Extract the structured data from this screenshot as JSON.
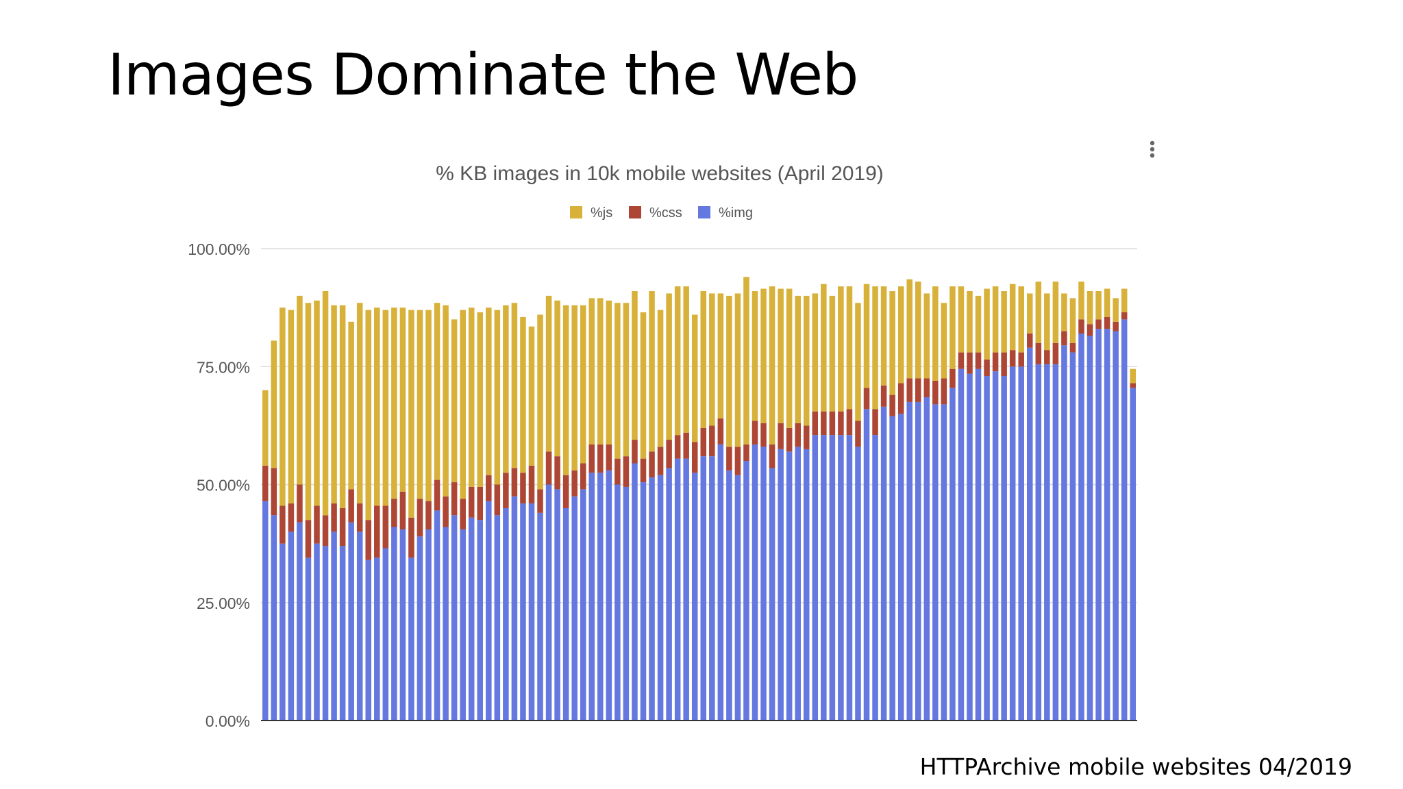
{
  "slide": {
    "title": "Images Dominate the Web",
    "source": "HTTPArchive mobile websites 04/2019"
  },
  "chart_menu": {
    "icon": "more-vert-icon"
  },
  "colors": {
    "js": "#d8b13a",
    "css": "#ad4634",
    "img": "#6478e0",
    "grid": "#dcdcdc",
    "axis": "#333333"
  },
  "chart_data": {
    "type": "bar",
    "stacked": true,
    "title": "% KB images in 10k mobile websites (April 2019)",
    "legend": {
      "position": "top",
      "entries": [
        "%js",
        "%css",
        "%img"
      ]
    },
    "ylim": [
      0,
      100
    ],
    "yticks": [
      "0.00%",
      "25.00%",
      "50.00%",
      "75.00%",
      "100.00%"
    ],
    "grid": true,
    "series": [
      {
        "name": "%img",
        "values": [
          46.5,
          43.5,
          37.5,
          40,
          42,
          34.5,
          37.5,
          37,
          40,
          37,
          42,
          40,
          34,
          34.5,
          36.5,
          41,
          40.5,
          34.5,
          39,
          40.5,
          44.5,
          41,
          43.5,
          40.5,
          43,
          42.5,
          46.5,
          43.5,
          45,
          47.5,
          46,
          46,
          44,
          50,
          49,
          45,
          47.5,
          49,
          52.5,
          52.5,
          53,
          50,
          49.5,
          54.5,
          50.5,
          51.5,
          52,
          53.5,
          55.5,
          55.5,
          52.5,
          56,
          56,
          58.5,
          53,
          52,
          55,
          58.5,
          58,
          53.5,
          57.5,
          57,
          58,
          57.5,
          60.5,
          60.5,
          60.5,
          60.5,
          60.5,
          58,
          66,
          60.5,
          66.5,
          64.5,
          65,
          67.5,
          67.5,
          68.5,
          67,
          67,
          70.5,
          74.5,
          73.5,
          74.5,
          73,
          74,
          73,
          75,
          75,
          79,
          75.5,
          75.5,
          75.5,
          79.5,
          78,
          82,
          81.5,
          83,
          83,
          82.5,
          85,
          70.5
        ]
      },
      {
        "name": "%css",
        "values": [
          7.5,
          10,
          8,
          6,
          8,
          8,
          8,
          6.5,
          6,
          8,
          7,
          6,
          8.5,
          11,
          9,
          6,
          8,
          8.5,
          8,
          6,
          6.5,
          6.5,
          7,
          6.5,
          6.5,
          7,
          5.5,
          6.5,
          7.5,
          6,
          6.5,
          8,
          5,
          7,
          7,
          7,
          5.5,
          5.5,
          6,
          6,
          5.5,
          5.5,
          6.5,
          5,
          5,
          5.5,
          6,
          6,
          5,
          5.5,
          6.5,
          6,
          6.5,
          5.5,
          5,
          6,
          3.5,
          5,
          5,
          5,
          5.5,
          5,
          5,
          5,
          5,
          5,
          5,
          5,
          5.5,
          5.5,
          4.5,
          5.5,
          4.5,
          4.5,
          6.5,
          5,
          5,
          4,
          5,
          5.5,
          4,
          3.5,
          4.5,
          3.5,
          3.5,
          4,
          5,
          3.5,
          3,
          3,
          4.5,
          3,
          4.5,
          3,
          2,
          3,
          2.5,
          2,
          2.5,
          2,
          1.5,
          1
        ]
      },
      {
        "name": "%js",
        "values": [
          16,
          27,
          42,
          41,
          40,
          46,
          43.5,
          47.5,
          42,
          43,
          35.5,
          42.5,
          44.5,
          42,
          41.5,
          40.5,
          39,
          44,
          40,
          40.5,
          37.5,
          40.5,
          34.5,
          40,
          38,
          37,
          35.5,
          37,
          35.5,
          35,
          33,
          29.5,
          37,
          33,
          33,
          36,
          35,
          33.5,
          31,
          31,
          30.5,
          33,
          32.5,
          31.5,
          31,
          34,
          29,
          31,
          31.5,
          31,
          27,
          29,
          28,
          26.5,
          32,
          32.5,
          35.5,
          27.5,
          28.5,
          33.5,
          28.5,
          29.5,
          27,
          27.5,
          25,
          27,
          24.5,
          26.5,
          26,
          25,
          22,
          26,
          21,
          22,
          20.5,
          21,
          20.5,
          18,
          20,
          16,
          17.5,
          14,
          13,
          12,
          15,
          14,
          13,
          14,
          14,
          8.5,
          13,
          12,
          13,
          8,
          9.5,
          8,
          7,
          6,
          6,
          5,
          5,
          3
        ]
      }
    ]
  }
}
